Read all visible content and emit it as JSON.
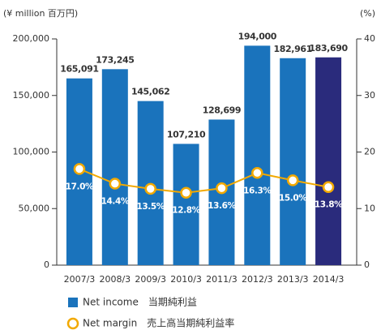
{
  "chart_data": {
    "type": "bar_line",
    "y_axis_label": "(¥ million 百万円)",
    "y2_axis_label": "(%)",
    "categories": [
      "2007/3",
      "2008/3",
      "2009/3",
      "2010/3",
      "2011/3",
      "2012/3",
      "2013/3",
      "2014/3"
    ],
    "series": [
      {
        "name": "Net income　当期純利益",
        "type": "bar",
        "color": "#1a73bc",
        "colors": [
          "#1a73bc",
          "#1a73bc",
          "#1a73bc",
          "#1a73bc",
          "#1a73bc",
          "#1a73bc",
          "#1a73bc",
          "#2a2b7c"
        ],
        "values": [
          165091,
          173245,
          145062,
          107210,
          128699,
          194000,
          182961,
          183690
        ],
        "value_labels": [
          "165,091",
          "173,245",
          "145,062",
          "107,210",
          "128,699",
          "194,000",
          "182,961",
          "183,690"
        ]
      },
      {
        "name": "Net margin　売上高当期純利益率",
        "type": "line",
        "axis": "y2",
        "color": "#f2a900",
        "values": [
          17.0,
          14.4,
          13.5,
          12.8,
          13.6,
          16.3,
          15.0,
          13.8
        ],
        "value_labels": [
          "17.0%",
          "14.4%",
          "13.5%",
          "12.8%",
          "13.6%",
          "16.3%",
          "15.0%",
          "13.8%"
        ]
      }
    ],
    "ylim": [
      0,
      200000
    ],
    "yticks": [
      0,
      {
        "value": 50000,
        "label": "50,000"
      },
      {
        "value": 100000,
        "label": "100,000"
      },
      {
        "value": 150000,
        "label": "150,000"
      },
      {
        "value": 200000,
        "label": "200,000"
      }
    ],
    "y2lim": [
      0,
      40
    ],
    "y2ticks": [
      0,
      10,
      20,
      30,
      40
    ]
  }
}
